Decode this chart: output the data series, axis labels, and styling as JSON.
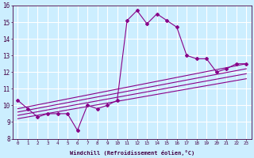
{
  "xlabel": "Windchill (Refroidissement éolien,°C)",
  "bg_color": "#cceeff",
  "grid_color": "#ffffff",
  "line_color": "#880088",
  "xlim": [
    -0.5,
    23.5
  ],
  "ylim": [
    8,
    16
  ],
  "xticks": [
    0,
    1,
    2,
    3,
    4,
    5,
    6,
    7,
    8,
    9,
    10,
    11,
    12,
    13,
    14,
    15,
    16,
    17,
    18,
    19,
    20,
    21,
    22,
    23
  ],
  "yticks": [
    8,
    9,
    10,
    11,
    12,
    13,
    14,
    15,
    16
  ],
  "main_x": [
    0,
    1,
    2,
    3,
    4,
    5,
    6,
    7,
    8,
    9,
    10,
    11,
    12,
    13,
    14,
    15,
    16,
    17,
    18,
    19,
    20,
    21,
    22,
    23
  ],
  "main_y": [
    10.3,
    9.8,
    9.3,
    9.5,
    9.5,
    9.5,
    8.5,
    10.0,
    9.8,
    10.0,
    10.3,
    15.1,
    15.7,
    14.9,
    15.5,
    15.1,
    14.7,
    13.0,
    12.8,
    12.8,
    12.0,
    12.2,
    12.5,
    12.5
  ],
  "line2_x": [
    0,
    23
  ],
  "line2_y": [
    9.8,
    12.5
  ],
  "line3_x": [
    0,
    23
  ],
  "line3_y": [
    9.6,
    12.2
  ],
  "line4_x": [
    0,
    23
  ],
  "line4_y": [
    9.4,
    11.9
  ],
  "line5_x": [
    0,
    23
  ],
  "line5_y": [
    9.2,
    11.6
  ]
}
